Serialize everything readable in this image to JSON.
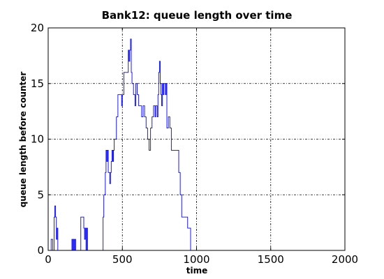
{
  "chart_data": {
    "type": "line",
    "title": "Bank12: queue length over time",
    "xlabel": "time",
    "ylabel": "queue length before counter",
    "xlim": [
      0,
      2000
    ],
    "ylim": [
      0,
      20
    ],
    "xticks": [
      0,
      500,
      1000,
      1500,
      2000
    ],
    "yticks": [
      0,
      5,
      10,
      15,
      20
    ],
    "grid": true,
    "series": [
      {
        "color": "#0000ff",
        "style": "step",
        "x": [
          0,
          20,
          30,
          40,
          45,
          50,
          55,
          60,
          65,
          70,
          75,
          80,
          85,
          90,
          100,
          160,
          165,
          170,
          175,
          180,
          185,
          190,
          200,
          220,
          230,
          240,
          245,
          250,
          255,
          260,
          265,
          270,
          280,
          290,
          300,
          360,
          370,
          375,
          380,
          385,
          390,
          395,
          400,
          405,
          410,
          415,
          420,
          425,
          430,
          435,
          440,
          445,
          450,
          460,
          470,
          480,
          490,
          495,
          500,
          510,
          520,
          530,
          540,
          545,
          550,
          555,
          560,
          565,
          570,
          575,
          580,
          585,
          590,
          595,
          600,
          610,
          620,
          630,
          640,
          650,
          660,
          670,
          680,
          690,
          700,
          710,
          720,
          725,
          730,
          735,
          740,
          745,
          750,
          755,
          760,
          765,
          770,
          775,
          780,
          785,
          790,
          795,
          800,
          810,
          820,
          830,
          840,
          845,
          850,
          860,
          870,
          880,
          890,
          900,
          920,
          940,
          960,
          970,
          980,
          990,
          1000,
          1010,
          1020,
          1030,
          1040
        ],
        "y": [
          0,
          1,
          0,
          3,
          4,
          3,
          1,
          2,
          0,
          0,
          0,
          0,
          0,
          0,
          0,
          1,
          0,
          1,
          0,
          1,
          0,
          0,
          0,
          3,
          3,
          2,
          1,
          2,
          0,
          2,
          0,
          0,
          0,
          0,
          0,
          0,
          3,
          5,
          5,
          7,
          9,
          8,
          9,
          7,
          7,
          6,
          7,
          8,
          9,
          8,
          9,
          10,
          10,
          12,
          14,
          14,
          14,
          13,
          14,
          16,
          16,
          16,
          18,
          17,
          18,
          19,
          16,
          15,
          15,
          14,
          14,
          13,
          15,
          15,
          14,
          13,
          13,
          12,
          13,
          12,
          11,
          10,
          9,
          11,
          12,
          13,
          12,
          13,
          13,
          12,
          14,
          16,
          17,
          15,
          14,
          13,
          15,
          14,
          15,
          15,
          14,
          15,
          11,
          12,
          11,
          9,
          9,
          9,
          9,
          9,
          9,
          7,
          5,
          3,
          3,
          2,
          0,
          0,
          0,
          0,
          0,
          0,
          0,
          0,
          0
        ]
      }
    ]
  }
}
